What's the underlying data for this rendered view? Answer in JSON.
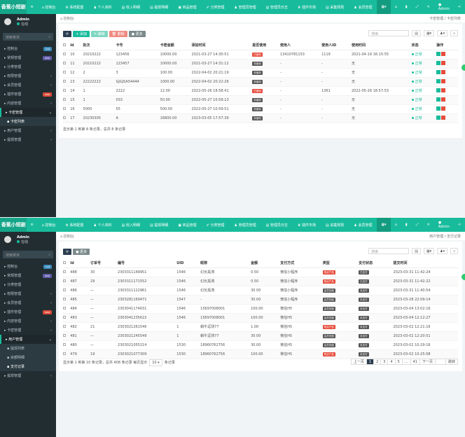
{
  "brand": "香蕉小短剧",
  "nav": [
    "控制台",
    "系统配置",
    "个人资料",
    "收入明细",
    "提现明细",
    "商品管理",
    "分类管理",
    "管理员管理",
    "管理员日志",
    "插件市场",
    "采集规则",
    "会员管理"
  ],
  "user": {
    "name": "Admin",
    "status": "在线"
  },
  "search_placeholder": "搜索菜单",
  "colors": {
    "primary": "#18bc9c",
    "sidebar": "#222d32",
    "danger": "#e74c3c",
    "dark": "#2c3e50",
    "gray": "#555"
  },
  "panels": [
    {
      "sidebar": [
        {
          "label": "控制台",
          "badge": "hot",
          "badge_color": "#3c8dbc"
        },
        {
          "label": "常规管理",
          "badge": "new",
          "badge_color": "#605ca8"
        },
        {
          "label": "分类管理"
        },
        {
          "label": "权限管理",
          "arrow": "‹"
        },
        {
          "label": "会员管理",
          "arrow": "‹"
        },
        {
          "label": "插件管理",
          "badge": "new",
          "badge_color": "#dd4b39"
        },
        {
          "label": "内容管理",
          "arrow": "‹"
        },
        {
          "label": "卡密管理",
          "arrow": "⌄",
          "open": true
        },
        {
          "label": "卡密列表",
          "sub": true,
          "active": true
        },
        {
          "label": "用户管理",
          "arrow": "‹"
        },
        {
          "label": "提现管理",
          "arrow": "‹"
        }
      ],
      "breadcrumb": {
        "home": "控制台",
        "path": [
          "卡密管理",
          "卡密列表"
        ]
      },
      "toolbar": [
        {
          "label": "⟳",
          "color": "#2c3e50"
        },
        {
          "label": "+ 添加",
          "color": "#18bc9c"
        },
        {
          "label": "✎ 编辑",
          "color": "#7fd6c2"
        },
        {
          "label": "🗑 删除",
          "color": "#f08a80"
        },
        {
          "label": "● 更多",
          "color": "#7b8a8b"
        }
      ],
      "search": "搜索",
      "columns": [
        "",
        "Id",
        "批次",
        "卡号",
        "卡密金额",
        "添加时间",
        "是否使用",
        "使用人",
        "使用人ID",
        "使用时间",
        "状态",
        "操作"
      ],
      "rows": [
        [
          "10",
          "20210222",
          "123456",
          "10000.00",
          "2021-03-27 14:30:51",
          "已使用",
          "13410781153",
          "1119",
          "2021-04-19 16:15:55"
        ],
        [
          "11",
          "20210222",
          "123457",
          "10000.00",
          "2021-03-27 14:31:12",
          "未使用",
          "-",
          "-",
          "无"
        ],
        [
          "12",
          "2",
          "3",
          "100.00",
          "2022-04-02 20:21:19",
          "未使用",
          "-",
          "-",
          "无"
        ],
        [
          "13",
          "22222222",
          "GJGJSA54444",
          "1000.00",
          "2022-04-02 20:22:26",
          "未使用",
          "-",
          "-",
          "无"
        ],
        [
          "14",
          "1",
          "2222",
          "12.00",
          "2022-05-26 18:58:41",
          "已使用",
          "-",
          "1361",
          "2022-05-26 18:57:53"
        ],
        [
          "15",
          "1",
          "033",
          "50.00",
          "2022-05-27 10:59:13",
          "未使用",
          "-",
          "-",
          "无"
        ],
        [
          "16",
          "5000",
          "55",
          "500.00",
          "2022-05-27 10:59:51",
          "未使用",
          "-",
          "-",
          "无"
        ],
        [
          "17",
          "20230305",
          "A",
          "16800.00",
          "2023-03-05 17:57:39",
          "未使用",
          "-",
          "-",
          "无"
        ]
      ],
      "status": "正常",
      "footer": "显示第 1 到第 8 条记录，总共 8 条记录"
    },
    {
      "sidebar": [
        {
          "label": "控制台",
          "badge": "hot",
          "badge_color": "#3c8dbc"
        },
        {
          "label": "常规管理",
          "badge": "new",
          "badge_color": "#605ca8"
        },
        {
          "label": "分类管理"
        },
        {
          "label": "权限管理",
          "arrow": "‹"
        },
        {
          "label": "会员管理",
          "arrow": "‹"
        },
        {
          "label": "插件管理",
          "badge": "new",
          "badge_color": "#dd4b39"
        },
        {
          "label": "内容管理",
          "arrow": "‹"
        },
        {
          "label": "卡密管理",
          "arrow": "‹"
        },
        {
          "label": "用户管理",
          "arrow": "⌄",
          "open": true
        },
        {
          "label": "提现列表",
          "sub": true
        },
        {
          "label": "余额明细",
          "sub": true
        },
        {
          "label": "支付记录",
          "sub": true,
          "active": true
        },
        {
          "label": "提现管理",
          "arrow": "‹"
        }
      ],
      "breadcrumb": {
        "home": "控制台",
        "path": [
          "用户管理",
          "支付记录"
        ]
      },
      "toolbar": [
        {
          "label": "⟳",
          "color": "#2c3e50"
        },
        {
          "label": "● 更多",
          "color": "#7b8a8b"
        }
      ],
      "search": "搜索",
      "columns": [
        "",
        "Id",
        "订单号",
        "编号",
        "UID",
        "昵称",
        "金额",
        "支付方式",
        "类型",
        "支付状态",
        "提交时间"
      ],
      "rows": [
        [
          "488",
          "30",
          "2303311149951",
          "1546",
          "幻长黑涛",
          "0.50",
          "微信小程序",
          "购买产品",
          "已支付",
          "2023-03-31 11:42:24"
        ],
        [
          "487",
          "29",
          "2303311171552",
          "1546",
          "幻长黑涛",
          "0.50",
          "微信小程序",
          "购买产品",
          "已支付",
          "2023-03-31 11:42:22"
        ],
        [
          "486",
          "—",
          "2303311122961",
          "1546",
          "幻长黑涛",
          "30.00",
          "微信小程序",
          "会员充值",
          "未支付",
          "2023-03-31 11:40:54"
        ],
        [
          "485",
          "—",
          "2303281169471",
          "1547",
          "-",
          "30.00",
          "微信小程序",
          "会员充值",
          "未支付",
          "2023-03-28 22:09:14"
        ],
        [
          "484",
          "—",
          "2303041174631",
          "1546",
          "15697008001",
          "100.00",
          "微信H5",
          "会员充值",
          "未支付",
          "2023-03-04 13:02:16"
        ],
        [
          "483",
          "—",
          "2303041235622",
          "1546",
          "15697008001",
          "100.00",
          "微信H5",
          "会员充值",
          "未支付",
          "2023-03-04 12:12:27"
        ],
        [
          "482",
          "21",
          "2303021261546",
          "1",
          "蜗牛逗测77",
          "1.00",
          "微信H5",
          "购买产品",
          "未支付",
          "2023-03-02 12:21:16"
        ],
        [
          "481",
          "—",
          "2303021245549",
          "1",
          "蜗牛逗测77",
          "30.00",
          "微信H5",
          "会员充值",
          "未支付",
          "2023-03-02 12:20:51"
        ],
        [
          "480",
          "—",
          "2303021055214",
          "1530",
          "18960762756",
          "30.00",
          "微信H5",
          "会员充值",
          "未支付",
          "2023-03-02 10:29:16"
        ],
        [
          "479",
          "19",
          "2303021077309",
          "1530",
          "18960762756",
          "100.00",
          "微信H5",
          "购买产品",
          "未支付",
          "2023-03-02 10:25:08"
        ]
      ],
      "footer": "显示第 1 到第 10 条记录，总共 408 条记录 每页显示",
      "page_size": "10 ▾",
      "footer_tail": "条记录",
      "pager": [
        "上一页",
        "1",
        "2",
        "3",
        "4",
        "5",
        "...",
        "41",
        "下一页",
        "",
        "跳转"
      ],
      "current_page": "1"
    }
  ]
}
